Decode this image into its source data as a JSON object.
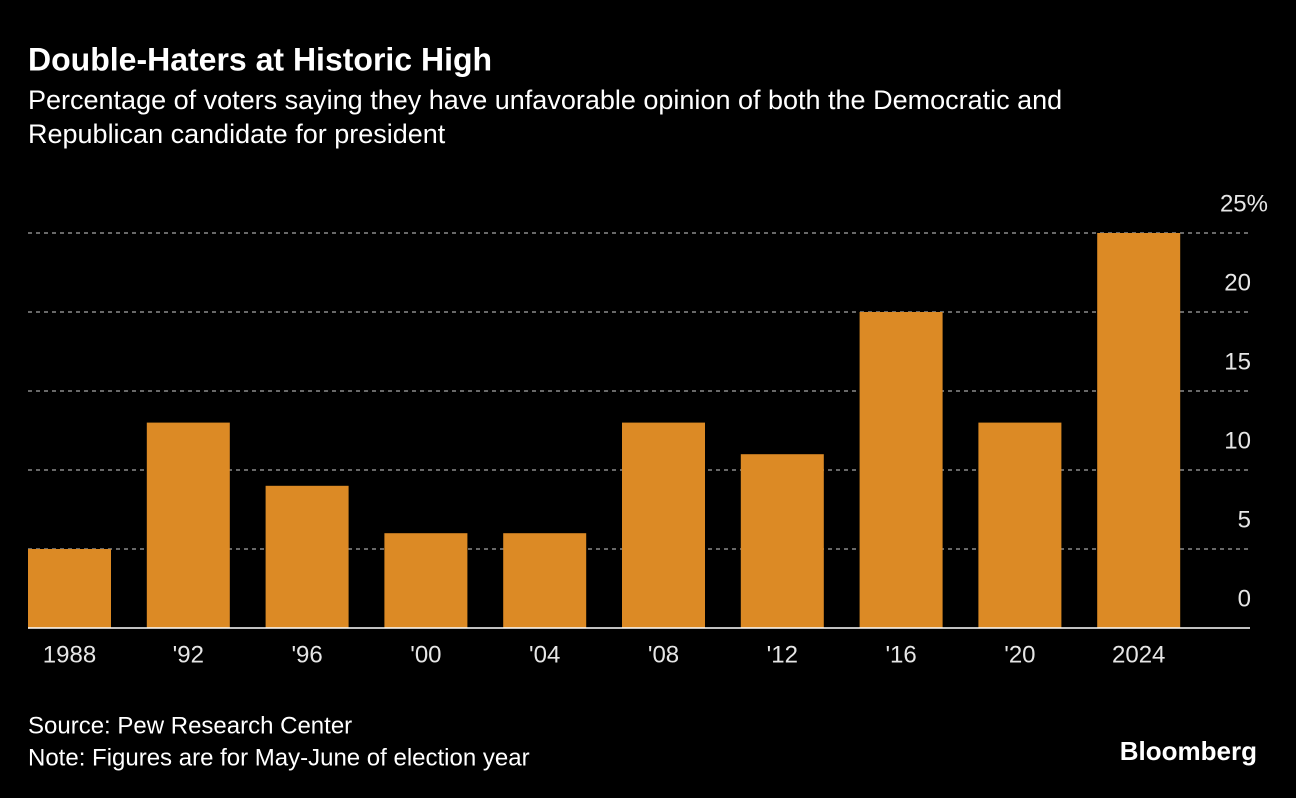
{
  "chart_data": {
    "type": "bar",
    "title": "Double-Haters at Historic High",
    "subtitle": [
      "Percentage of voters saying they have unfavorable opinion of both the Democratic and",
      "Republican candidate for president"
    ],
    "categories": [
      "1988",
      "'92",
      "'96",
      "'00",
      "'04",
      "'08",
      "'12",
      "'16",
      "'20",
      "2024"
    ],
    "values": [
      5,
      13,
      9,
      6,
      6,
      13,
      11,
      20,
      13,
      25
    ],
    "color": "#dc8a25",
    "ylim": [
      0,
      25
    ],
    "yticks": [
      0,
      5,
      10,
      15,
      20,
      {
        "value": 25,
        "label": "25%"
      }
    ],
    "grid": true,
    "source": "Source: Pew Research Center",
    "note": "Note: Figures are for May-June of election year",
    "logo": "Bloomberg"
  }
}
